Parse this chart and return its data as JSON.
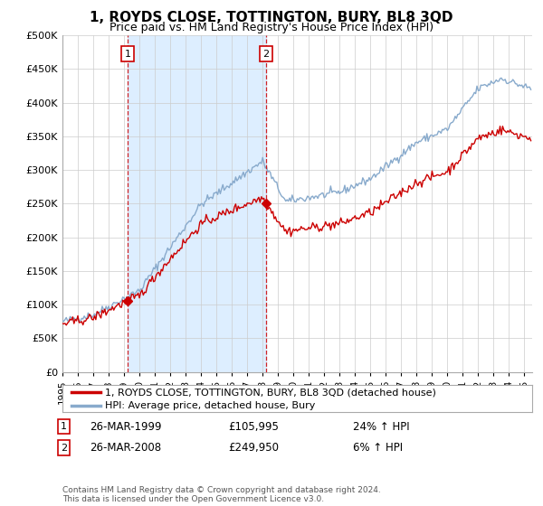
{
  "title": "1, ROYDS CLOSE, TOTTINGTON, BURY, BL8 3QD",
  "subtitle": "Price paid vs. HM Land Registry's House Price Index (HPI)",
  "ylim": [
    0,
    500000
  ],
  "yticks": [
    0,
    50000,
    100000,
    150000,
    200000,
    250000,
    300000,
    350000,
    400000,
    450000,
    500000
  ],
  "ytick_labels": [
    "£0",
    "£50K",
    "£100K",
    "£150K",
    "£200K",
    "£250K",
    "£300K",
    "£350K",
    "£400K",
    "£450K",
    "£500K"
  ],
  "sale1_price": 105995,
  "sale1_date": "26-MAR-1999",
  "sale1_hpi_pct": "24%",
  "sale1_year": 1999.23,
  "sale2_price": 249950,
  "sale2_date": "26-MAR-2008",
  "sale2_hpi_pct": "6%",
  "sale2_year": 2008.23,
  "line_color_property": "#cc0000",
  "line_color_hpi": "#88aacc",
  "fill_color": "#ddeeff",
  "vline_color": "#cc0000",
  "legend_label_property": "1, ROYDS CLOSE, TOTTINGTON, BURY, BL8 3QD (detached house)",
  "legend_label_hpi": "HPI: Average price, detached house, Bury",
  "footer": "Contains HM Land Registry data © Crown copyright and database right 2024.\nThis data is licensed under the Open Government Licence v3.0.",
  "bg_color": "#ffffff",
  "grid_color": "#cccccc",
  "title_fontsize": 11,
  "subtitle_fontsize": 9,
  "tick_fontsize": 8,
  "x_start_year": 1995.0,
  "x_end_year": 2025.5
}
